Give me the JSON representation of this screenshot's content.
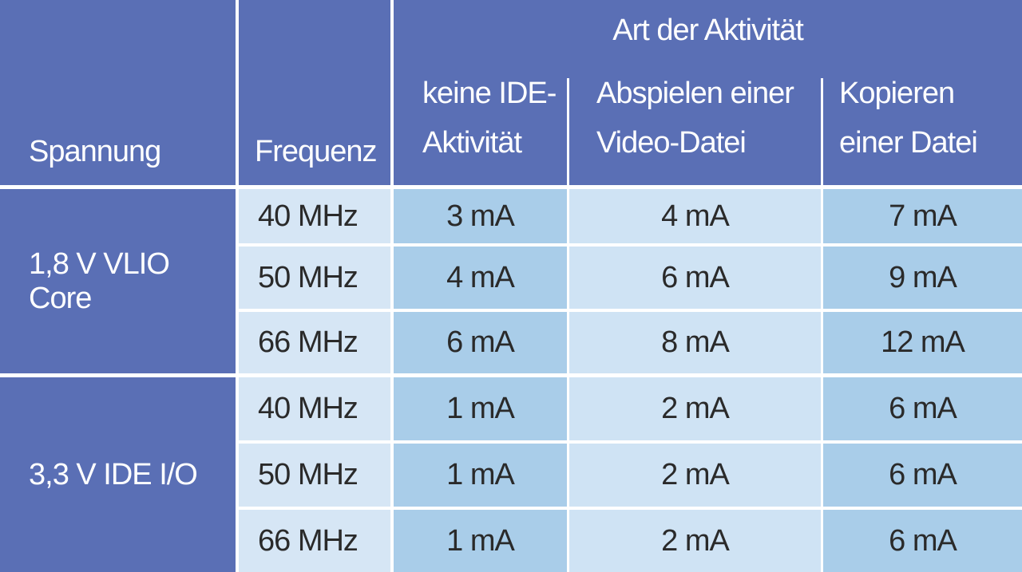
{
  "header": {
    "spannung_label": "Spannung",
    "frequenz_label": "Frequenz",
    "group_label": "Art der Aktivität",
    "columns": [
      {
        "line1": "keine IDE-",
        "line2": "Aktivität"
      },
      {
        "line1": "Abspielen einer",
        "line2": "Video-Datei"
      },
      {
        "line1": "Kopieren",
        "line2": "einer Datei"
      }
    ]
  },
  "groups": [
    {
      "voltage": "1,8 V VLIO Core",
      "rows": [
        {
          "freq": "40 MHz",
          "values": [
            "3 mA",
            "4 mA",
            "7 mA"
          ]
        },
        {
          "freq": "50 MHz",
          "values": [
            "4 mA",
            "6 mA",
            "9 mA"
          ]
        },
        {
          "freq": "66 MHz",
          "values": [
            "6 mA",
            "8 mA",
            "12 mA"
          ]
        }
      ]
    },
    {
      "voltage": "3,3 V IDE I/O",
      "rows": [
        {
          "freq": "40 MHz",
          "values": [
            "1 mA",
            "2 mA",
            "6 mA"
          ]
        },
        {
          "freq": "50 MHz",
          "values": [
            "1 mA",
            "2 mA",
            "6 mA"
          ]
        },
        {
          "freq": "66 MHz",
          "values": [
            "1 mA",
            "2 mA",
            "6 mA"
          ]
        }
      ]
    }
  ]
}
